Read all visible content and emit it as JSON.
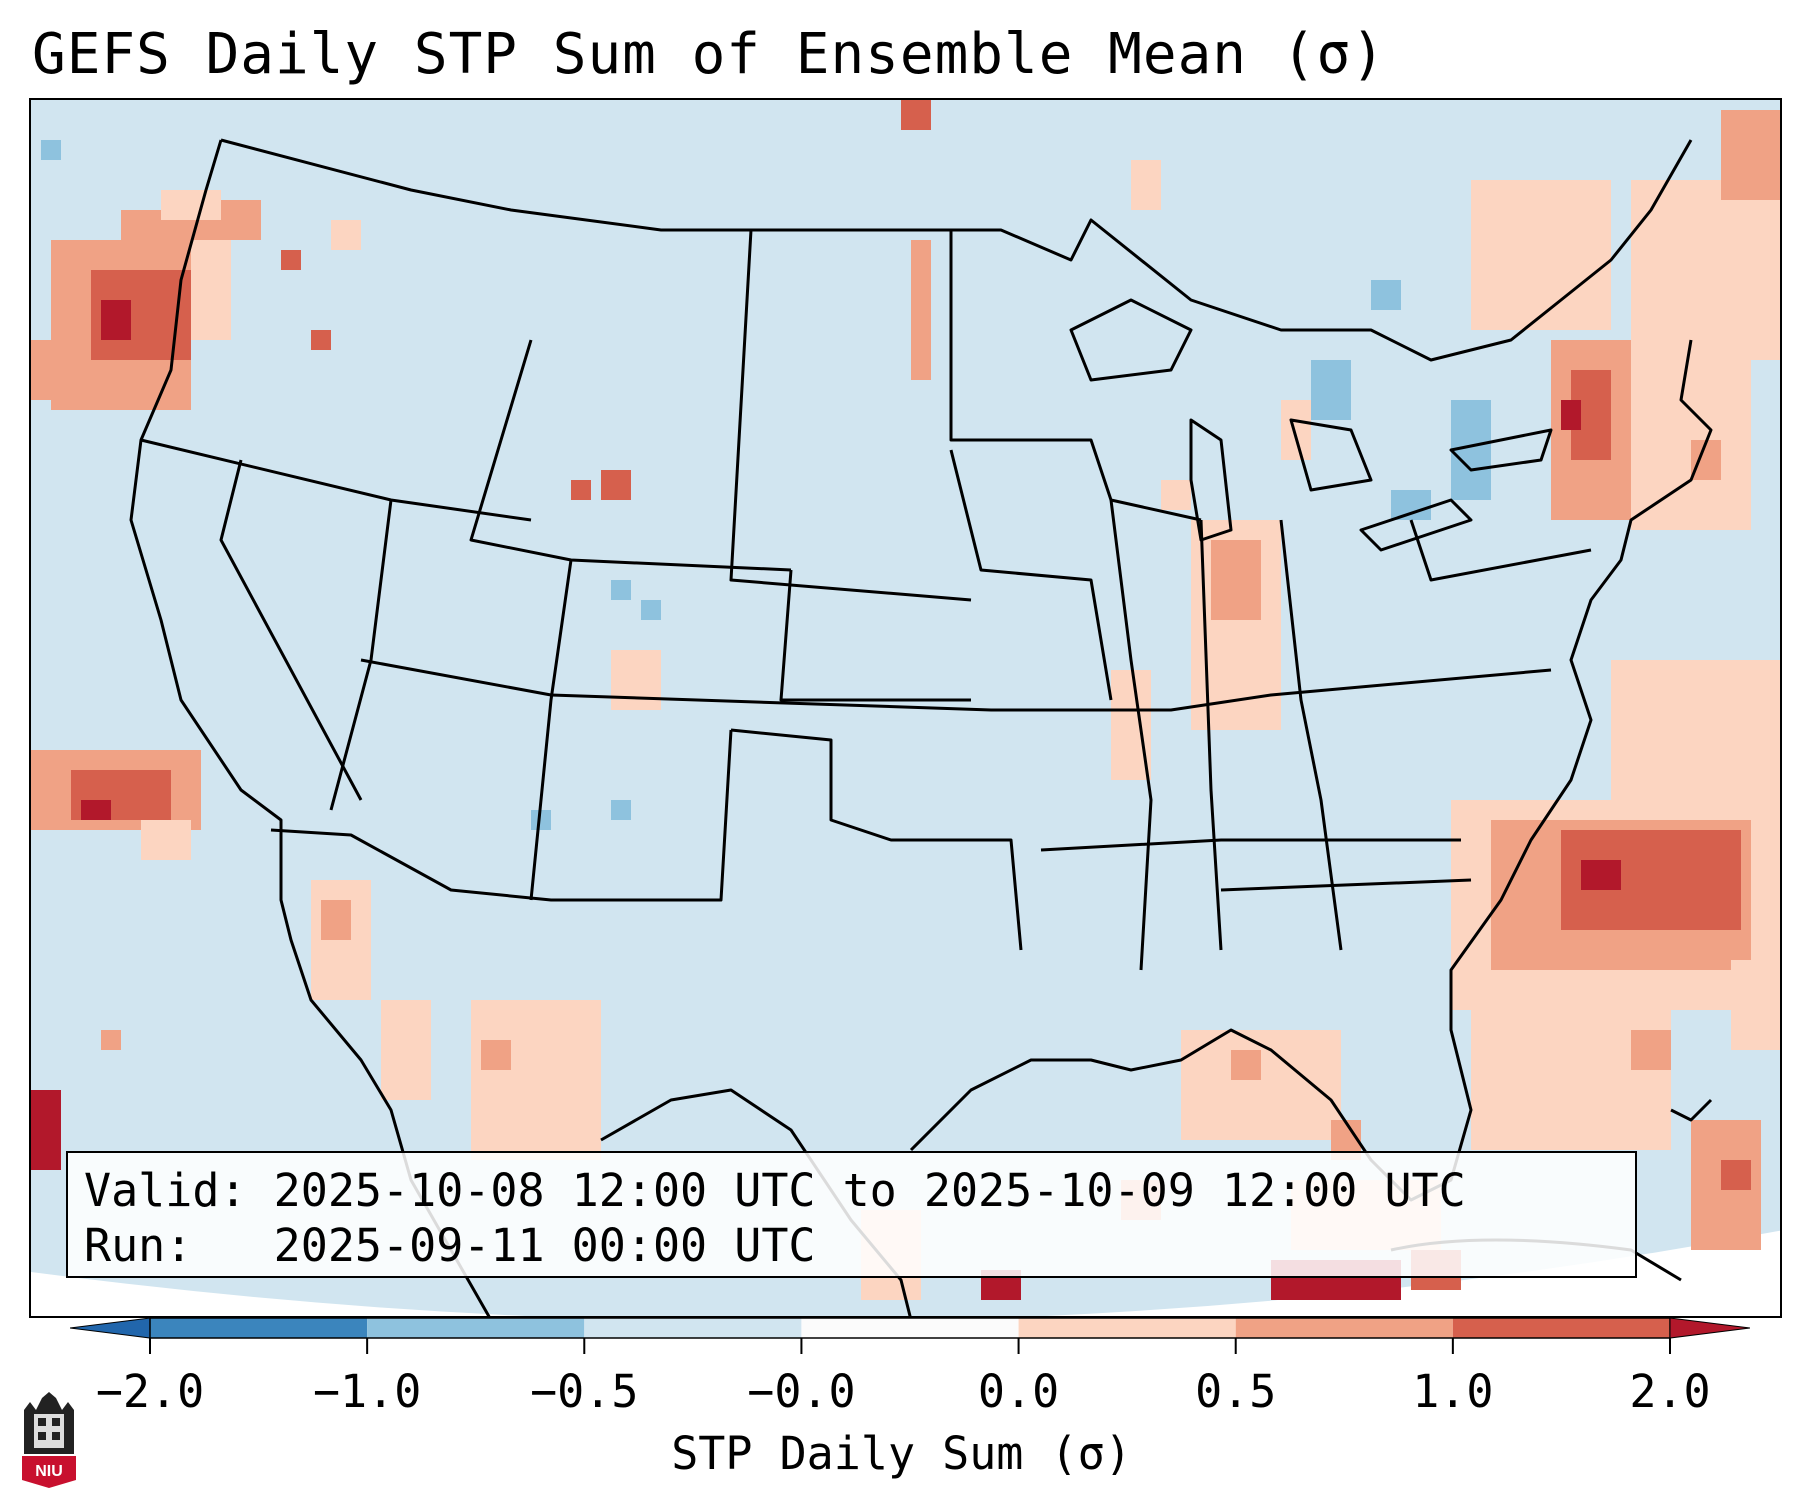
{
  "title": "GEFS Daily STP Sum of Ensemble Mean (σ)",
  "info": {
    "valid_label": "Valid:",
    "valid_value": "2025-10-08 12:00 UTC to 2025-10-09 12:00 UTC",
    "run_label": "Run:",
    "run_value": "2025-09-11 00:00 UTC"
  },
  "colorbar": {
    "label": "STP Daily Sum (σ)",
    "ticks": [
      "−2.0",
      "−1.0",
      "−0.5",
      "−0.0",
      "0.0",
      "0.5",
      "1.0",
      "2.0"
    ],
    "bin_colors": [
      "#3b85bd",
      "#8ec2de",
      "#d1e5f0",
      "#fbfbfb",
      "#fcd5c1",
      "#f0a285",
      "#d6604d"
    ],
    "under_color": "#2166ac",
    "over_color": "#b2182b"
  },
  "map": {
    "background_color": "#d1e5f0",
    "border_color": "#000000",
    "anomaly_regions": [
      {
        "region": "Pacific Northwest coast",
        "level": 1.2
      },
      {
        "region": "Eastern Pacific off Baja",
        "level": 1.1
      },
      {
        "region": "Western Atlantic off Carolinas",
        "level": 1.3
      },
      {
        "region": "Northern New England",
        "level": 1.1
      },
      {
        "region": "Gulf of Mexico / Florida Straits",
        "level": 0.6
      },
      {
        "region": "Indiana / Ohio Valley",
        "level": 0.4
      },
      {
        "region": "Gulf of California",
        "level": 0.5
      }
    ]
  },
  "logo": {
    "text": "NIU"
  }
}
